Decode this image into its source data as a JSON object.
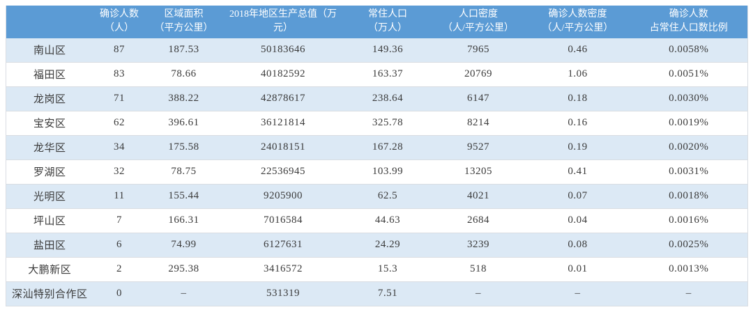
{
  "table": {
    "header_bg": "#5B9BD5",
    "header_text_color": "#ffffff",
    "stripe_color": "#DCE9F5",
    "plain_row_color": "#ffffff",
    "border_color": "#d9dde2",
    "body_text_color": "#3a3a3a",
    "columns": [
      {
        "key": "district",
        "label": ""
      },
      {
        "key": "confirmed",
        "label": "确诊人数\n（人）"
      },
      {
        "key": "area",
        "label": "区域面积\n（平方公里）"
      },
      {
        "key": "gdp",
        "label": "2018年地区生产总值（万\n元）"
      },
      {
        "key": "population",
        "label": "常住人口\n（万人）"
      },
      {
        "key": "pop-density",
        "label": "人口密度\n（人/平方公里）"
      },
      {
        "key": "confirmed-density",
        "label": "确诊人数密度\n（人/平方公里）"
      },
      {
        "key": "confirmed-ratio",
        "label": "确诊人数\n占常住人口数比例"
      }
    ],
    "rows": [
      [
        "南山区",
        "87",
        "187.53",
        "50183646",
        "149.36",
        "7965",
        "0.46",
        "0.0058%"
      ],
      [
        "福田区",
        "83",
        "78.66",
        "40182592",
        "163.37",
        "20769",
        "1.06",
        "0.0051%"
      ],
      [
        "龙岗区",
        "71",
        "388.22",
        "42878617",
        "238.64",
        "6147",
        "0.18",
        "0.0030%"
      ],
      [
        "宝安区",
        "62",
        "396.61",
        "36121814",
        "325.78",
        "8214",
        "0.16",
        "0.0019%"
      ],
      [
        "龙华区",
        "34",
        "175.58",
        "24018151",
        "167.28",
        "9527",
        "0.19",
        "0.0020%"
      ],
      [
        "罗湖区",
        "32",
        "78.75",
        "22536945",
        "103.99",
        "13205",
        "0.41",
        "0.0031%"
      ],
      [
        "光明区",
        "11",
        "155.44",
        "9205900",
        "62.5",
        "4021",
        "0.07",
        "0.0018%"
      ],
      [
        "坪山区",
        "7",
        "166.31",
        "7016584",
        "44.63",
        "2684",
        "0.04",
        "0.0016%"
      ],
      [
        "盐田区",
        "6",
        "74.99",
        "6127631",
        "24.29",
        "3239",
        "0.08",
        "0.0025%"
      ],
      [
        "大鹏新区",
        "2",
        "295.38",
        "3416572",
        "15.3",
        "518",
        "0.01",
        "0.0013%"
      ],
      [
        "深汕特别合作区",
        "0",
        "–",
        "531319",
        "7.51",
        "–",
        "–",
        "–"
      ]
    ]
  },
  "chart_data": {
    "type": "table",
    "title": "",
    "columns": [
      "",
      "确诊人数（人）",
      "区域面积（平方公里）",
      "2018年地区生产总值（万元）",
      "常住人口（万人）",
      "人口密度（人/平方公里）",
      "确诊人数密度（人/平方公里）",
      "确诊人数占常住人口数比例"
    ],
    "rows": [
      {
        "district": "南山区",
        "confirmed": 87,
        "area_km2": 187.53,
        "gdp_wan_yuan": 50183646,
        "population_wan": 149.36,
        "pop_density": 7965,
        "confirmed_density": 0.46,
        "confirmed_ratio": "0.0058%"
      },
      {
        "district": "福田区",
        "confirmed": 83,
        "area_km2": 78.66,
        "gdp_wan_yuan": 40182592,
        "population_wan": 163.37,
        "pop_density": 20769,
        "confirmed_density": 1.06,
        "confirmed_ratio": "0.0051%"
      },
      {
        "district": "龙岗区",
        "confirmed": 71,
        "area_km2": 388.22,
        "gdp_wan_yuan": 42878617,
        "population_wan": 238.64,
        "pop_density": 6147,
        "confirmed_density": 0.18,
        "confirmed_ratio": "0.0030%"
      },
      {
        "district": "宝安区",
        "confirmed": 62,
        "area_km2": 396.61,
        "gdp_wan_yuan": 36121814,
        "population_wan": 325.78,
        "pop_density": 8214,
        "confirmed_density": 0.16,
        "confirmed_ratio": "0.0019%"
      },
      {
        "district": "龙华区",
        "confirmed": 34,
        "area_km2": 175.58,
        "gdp_wan_yuan": 24018151,
        "population_wan": 167.28,
        "pop_density": 9527,
        "confirmed_density": 0.19,
        "confirmed_ratio": "0.0020%"
      },
      {
        "district": "罗湖区",
        "confirmed": 32,
        "area_km2": 78.75,
        "gdp_wan_yuan": 22536945,
        "population_wan": 103.99,
        "pop_density": 13205,
        "confirmed_density": 0.41,
        "confirmed_ratio": "0.0031%"
      },
      {
        "district": "光明区",
        "confirmed": 11,
        "area_km2": 155.44,
        "gdp_wan_yuan": 9205900,
        "population_wan": 62.5,
        "pop_density": 4021,
        "confirmed_density": 0.07,
        "confirmed_ratio": "0.0018%"
      },
      {
        "district": "坪山区",
        "confirmed": 7,
        "area_km2": 166.31,
        "gdp_wan_yuan": 7016584,
        "population_wan": 44.63,
        "pop_density": 2684,
        "confirmed_density": 0.04,
        "confirmed_ratio": "0.0016%"
      },
      {
        "district": "盐田区",
        "confirmed": 6,
        "area_km2": 74.99,
        "gdp_wan_yuan": 6127631,
        "population_wan": 24.29,
        "pop_density": 3239,
        "confirmed_density": 0.08,
        "confirmed_ratio": "0.0025%"
      },
      {
        "district": "大鹏新区",
        "confirmed": 2,
        "area_km2": 295.38,
        "gdp_wan_yuan": 3416572,
        "population_wan": 15.3,
        "pop_density": 518,
        "confirmed_density": 0.01,
        "confirmed_ratio": "0.0013%"
      },
      {
        "district": "深汕特别合作区",
        "confirmed": 0,
        "area_km2": null,
        "gdp_wan_yuan": 531319,
        "population_wan": 7.51,
        "pop_density": null,
        "confirmed_density": null,
        "confirmed_ratio": null
      }
    ]
  }
}
